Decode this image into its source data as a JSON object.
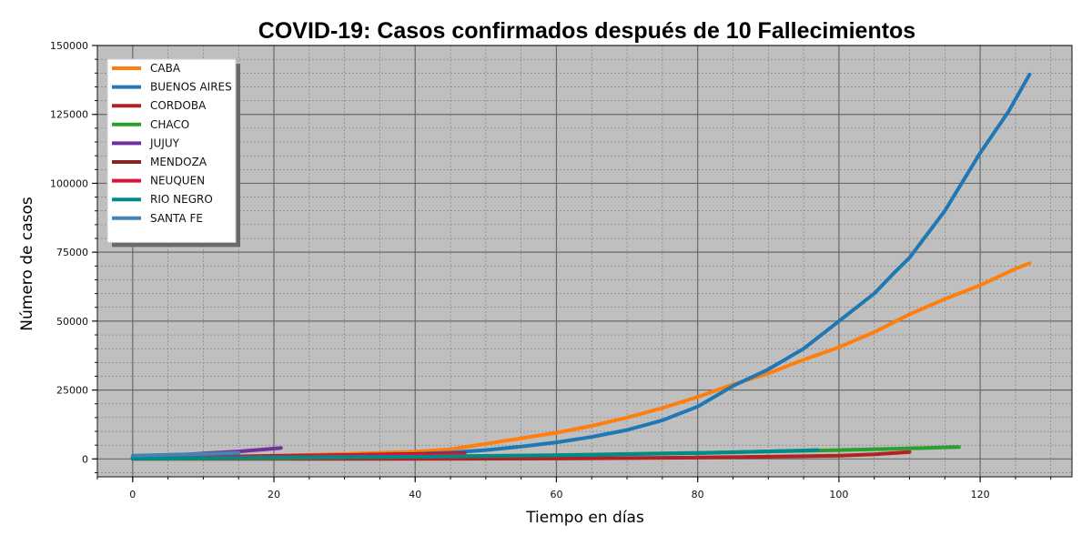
{
  "chart_data": {
    "type": "line",
    "title": "COVID-19: Casos confirmados después de 10 Fallecimientos",
    "xlabel": "Tiempo en días",
    "ylabel": "Número de casos",
    "xlim": [
      -5,
      133
    ],
    "ylim": [
      -6500,
      150000
    ],
    "xticks": [
      0,
      20,
      40,
      60,
      80,
      100,
      120
    ],
    "yticks": [
      0,
      25000,
      50000,
      75000,
      100000,
      125000,
      150000
    ],
    "grid": true,
    "legend_position": "top-left",
    "series": [
      {
        "name": "CABA",
        "color": "#ff7f0e",
        "x": [
          0,
          10,
          20,
          30,
          40,
          45,
          50,
          55,
          60,
          65,
          70,
          75,
          80,
          85,
          90,
          95,
          100,
          105,
          110,
          115,
          120,
          125,
          127
        ],
        "y": [
          300,
          700,
          1200,
          1800,
          2600,
          3500,
          5500,
          7500,
          9500,
          12000,
          15000,
          18500,
          22500,
          27000,
          31000,
          36000,
          40500,
          46000,
          52500,
          58000,
          63000,
          69000,
          71000
        ]
      },
      {
        "name": "BUENOS AIRES",
        "color": "#1f77b4",
        "x": [
          0,
          10,
          20,
          30,
          40,
          45,
          50,
          55,
          60,
          65,
          70,
          75,
          80,
          85,
          90,
          95,
          100,
          105,
          108,
          110,
          115,
          120,
          124,
          127
        ],
        "y": [
          400,
          600,
          1000,
          1400,
          1800,
          2300,
          3200,
          4500,
          6000,
          8000,
          10500,
          14000,
          19000,
          26500,
          32500,
          40000,
          50000,
          60000,
          68000,
          73000,
          90000,
          111000,
          126000,
          139500
        ]
      },
      {
        "name": "CORDOBA",
        "color": "#b22222",
        "x": [
          0,
          20,
          40,
          60,
          80,
          90,
          100,
          105,
          110
        ],
        "y": [
          0,
          0,
          50,
          150,
          500,
          800,
          1200,
          1700,
          2500
        ]
      },
      {
        "name": "CHACO",
        "color": "#2ca02c",
        "x": [
          0,
          20,
          40,
          60,
          80,
          100,
          117
        ],
        "y": [
          0,
          300,
          800,
          1400,
          2200,
          3200,
          4300
        ]
      },
      {
        "name": "JUJUY",
        "color": "#7030a0",
        "x": [
          0,
          5,
          10,
          15,
          18,
          21
        ],
        "y": [
          500,
          1200,
          2000,
          2700,
          3300,
          4000
        ]
      },
      {
        "name": "MENDOZA",
        "color": "#8b2222",
        "x": [
          0,
          10,
          20,
          30,
          40,
          47
        ],
        "y": [
          300,
          700,
          1100,
          1400,
          1800,
          2000
        ]
      },
      {
        "name": "NEUQUEN",
        "color": "#dc143c",
        "x": [
          0,
          10,
          20,
          30,
          40,
          47
        ],
        "y": [
          300,
          600,
          900,
          1200,
          1500,
          1700
        ]
      },
      {
        "name": "RIO NEGRO",
        "color": "#008b8b",
        "x": [
          0,
          20,
          40,
          60,
          80,
          97
        ],
        "y": [
          100,
          500,
          800,
          1300,
          2100,
          3200
        ]
      },
      {
        "name": "SANTA FE",
        "color": "#4682b4",
        "x": [
          0,
          5,
          10,
          15
        ],
        "y": [
          1200,
          1500,
          1800,
          2200
        ]
      }
    ]
  }
}
